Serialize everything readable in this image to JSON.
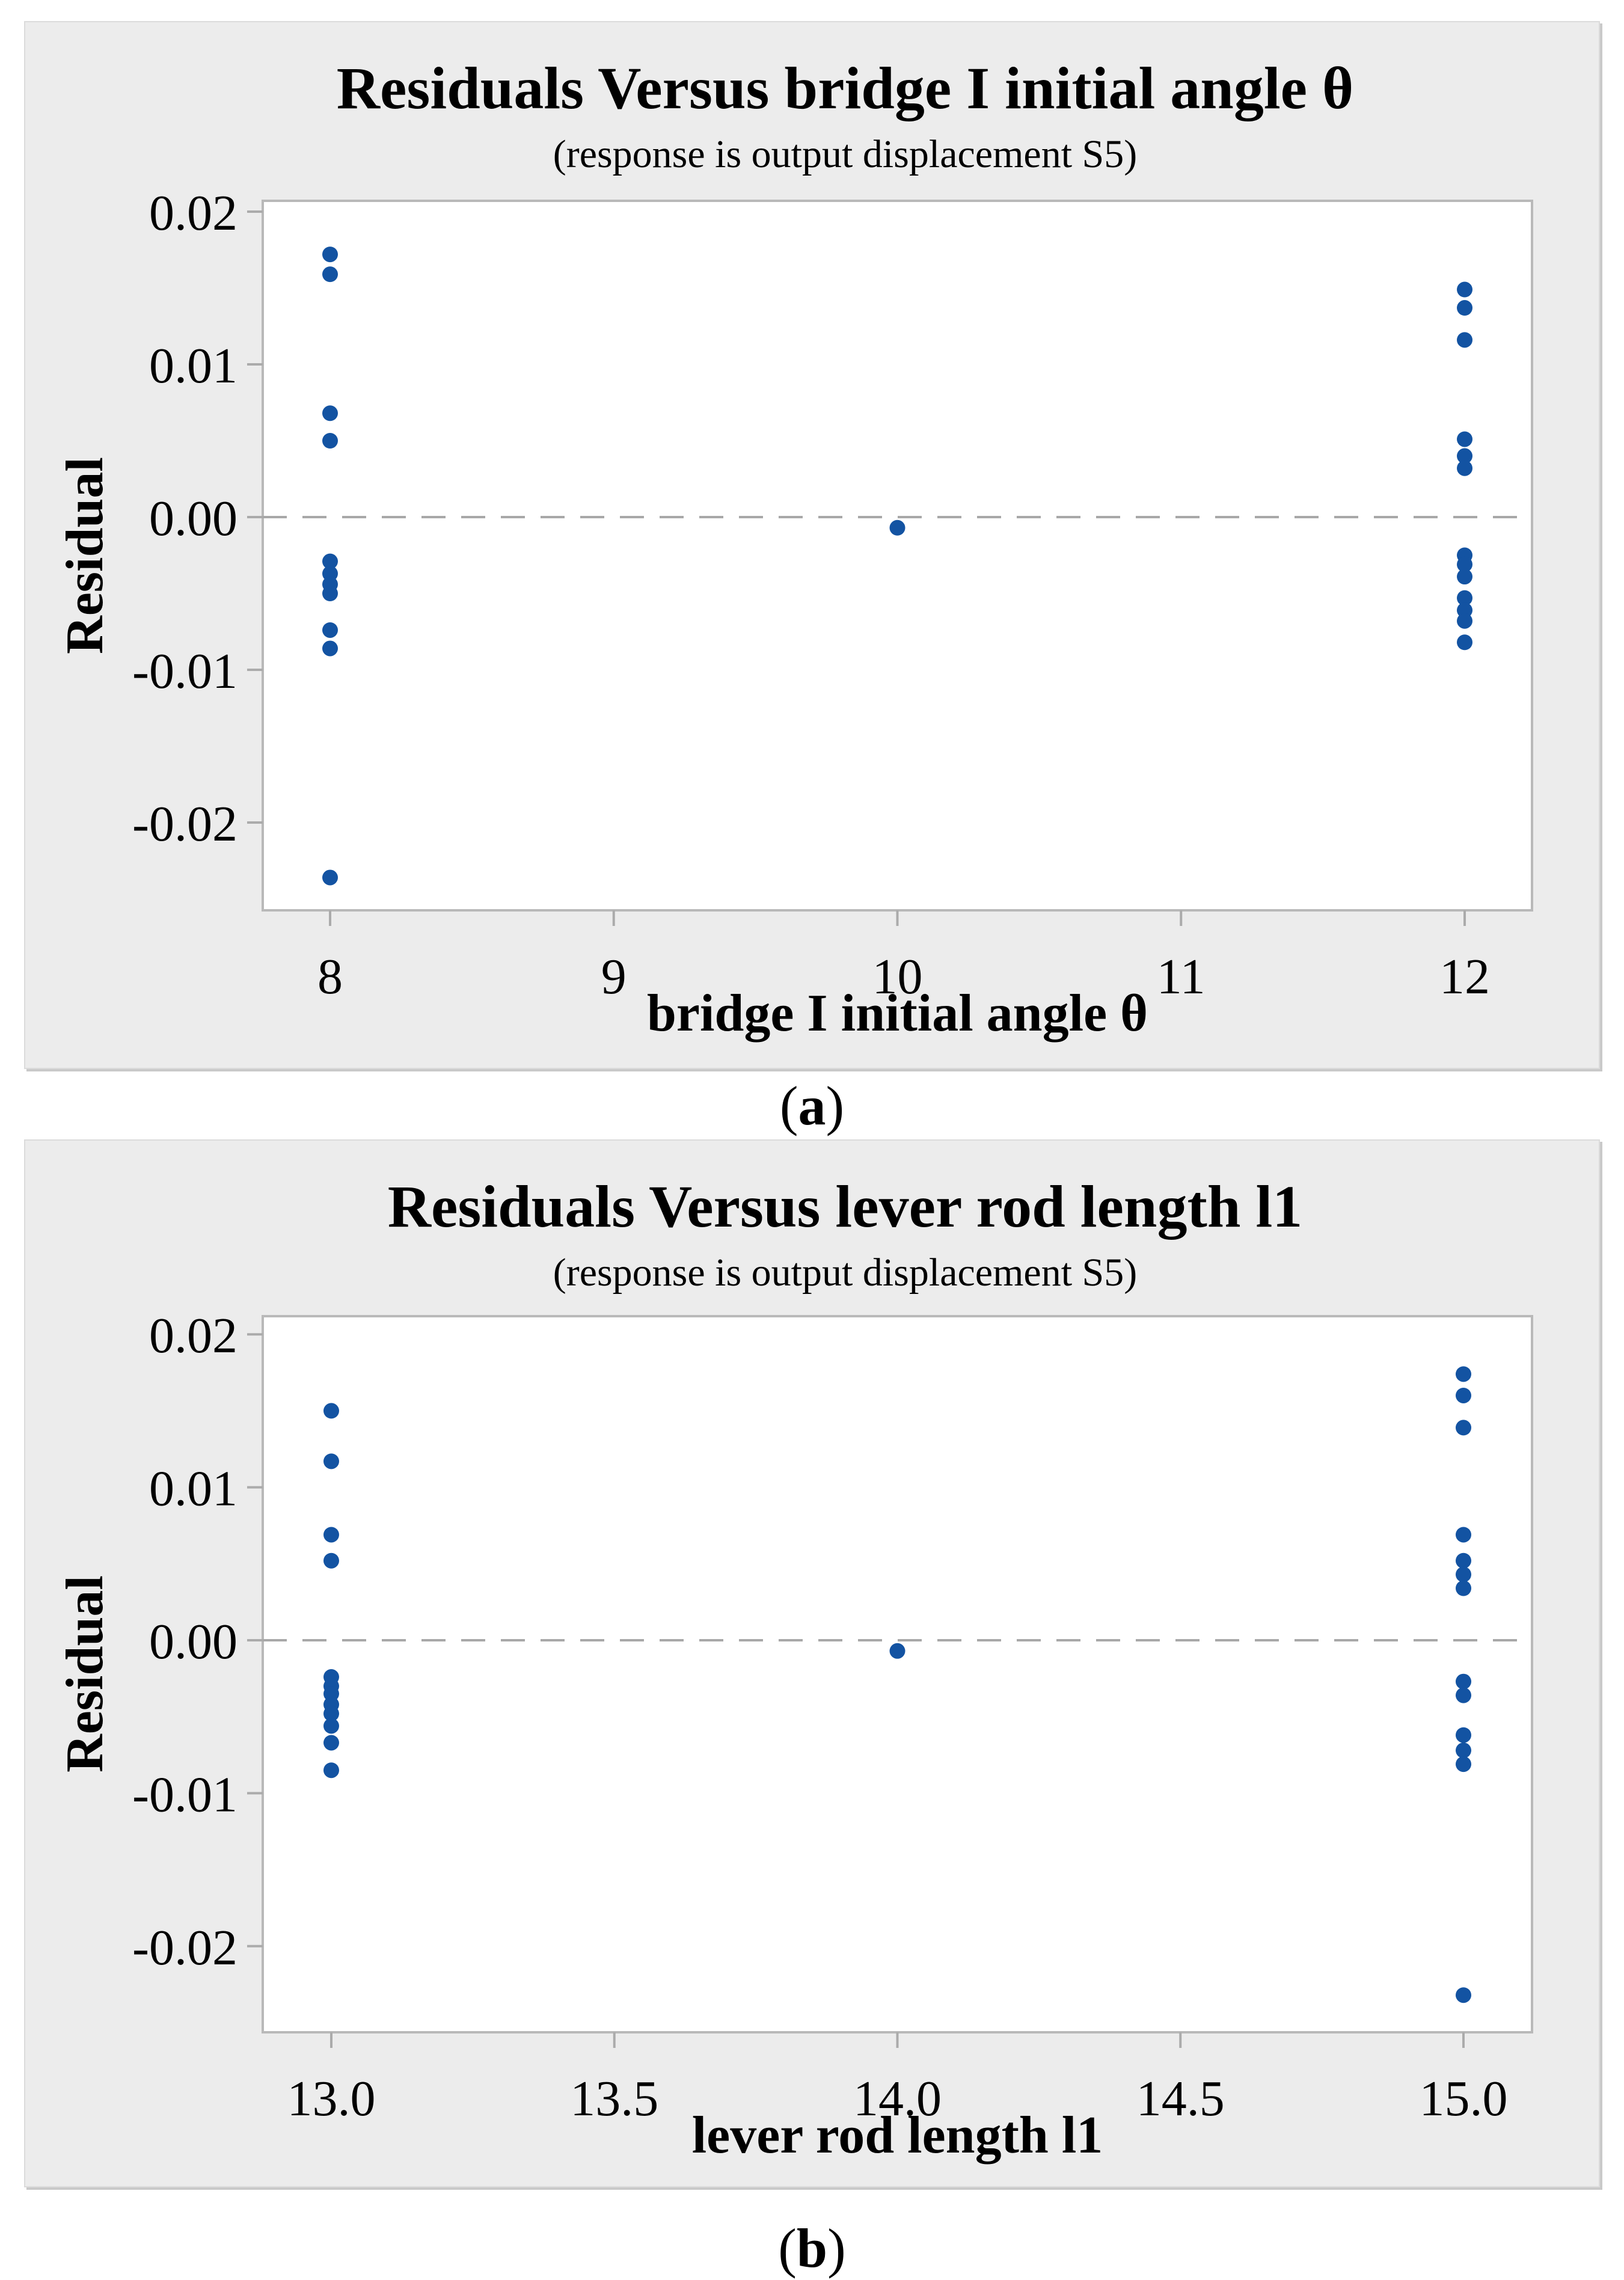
{
  "captions": [
    {
      "open": "(",
      "letter": "a",
      "close": ")"
    },
    {
      "open": "(",
      "letter": "b",
      "close": ")"
    }
  ],
  "colors": {
    "point": "#1353A2",
    "panel_background": "#ECECEC",
    "plot_background": "#FFFFFF",
    "plot_frame": "#B9B9B9",
    "tick": "#ABABAB",
    "zero_line": "#A8A8A8"
  },
  "chart_data": [
    {
      "type": "scatter",
      "title": "Residuals Versus bridge I initial angle θ",
      "subtitle": "(response is output displacement S5)",
      "xlabel": "bridge I initial angle θ",
      "ylabel": "Residual",
      "xlim": [
        7.76,
        12.24
      ],
      "ylim": [
        -0.0257,
        0.0207
      ],
      "grid": false,
      "zero_reference_line": 0.0,
      "x_ticks": [
        {
          "v": 8,
          "label": "8"
        },
        {
          "v": 9,
          "label": "9"
        },
        {
          "v": 10,
          "label": "10"
        },
        {
          "v": 11,
          "label": "11"
        },
        {
          "v": 12,
          "label": "12"
        }
      ],
      "y_ticks": [
        {
          "v": 0.02,
          "label": "0.02"
        },
        {
          "v": 0.01,
          "label": "0.01"
        },
        {
          "v": 0.0,
          "label": "0.00"
        },
        {
          "v": -0.01,
          "label": "-0.01"
        },
        {
          "v": -0.02,
          "label": "-0.02"
        }
      ],
      "series": [
        {
          "name": "residuals",
          "points": [
            [
              8,
              0.0172
            ],
            [
              8,
              0.0159
            ],
            [
              8,
              0.0068
            ],
            [
              8,
              0.005
            ],
            [
              8,
              -0.0029
            ],
            [
              8,
              -0.0037
            ],
            [
              8,
              -0.0044
            ],
            [
              8,
              -0.005
            ],
            [
              8,
              -0.0074
            ],
            [
              8,
              -0.0086
            ],
            [
              8,
              -0.0236
            ],
            [
              10,
              -0.0007
            ],
            [
              12,
              0.0149
            ],
            [
              12,
              0.0137
            ],
            [
              12,
              0.0116
            ],
            [
              12,
              0.0051
            ],
            [
              12,
              0.004
            ],
            [
              12,
              0.0032
            ],
            [
              12,
              -0.0025
            ],
            [
              12,
              -0.0031
            ],
            [
              12,
              -0.0039
            ],
            [
              12,
              -0.0053
            ],
            [
              12,
              -0.0061
            ],
            [
              12,
              -0.0068
            ],
            [
              12,
              -0.0082
            ]
          ]
        }
      ]
    },
    {
      "type": "scatter",
      "title": "Residuals Versus lever rod length l1",
      "subtitle": "(response is output displacement S5)",
      "xlabel": "lever rod length l1",
      "ylabel": "Residual",
      "xlim": [
        12.88,
        15.12
      ],
      "ylim": [
        -0.0256,
        0.0212
      ],
      "grid": false,
      "zero_reference_line": 0.0,
      "x_ticks": [
        {
          "v": 13.0,
          "label": "13.0"
        },
        {
          "v": 13.5,
          "label": "13.5"
        },
        {
          "v": 14.0,
          "label": "14.0"
        },
        {
          "v": 14.5,
          "label": "14.5"
        },
        {
          "v": 15.0,
          "label": "15.0"
        }
      ],
      "y_ticks": [
        {
          "v": 0.02,
          "label": "0.02"
        },
        {
          "v": 0.01,
          "label": "0.01"
        },
        {
          "v": 0.0,
          "label": "0.00"
        },
        {
          "v": -0.01,
          "label": "-0.01"
        },
        {
          "v": -0.02,
          "label": "-0.02"
        }
      ],
      "series": [
        {
          "name": "residuals",
          "points": [
            [
              13,
              0.015
            ],
            [
              13,
              0.0117
            ],
            [
              13,
              0.0069
            ],
            [
              13,
              0.0052
            ],
            [
              13,
              -0.0024
            ],
            [
              13,
              -0.003
            ],
            [
              13,
              -0.0035
            ],
            [
              13,
              -0.0042
            ],
            [
              13,
              -0.0048
            ],
            [
              13,
              -0.0056
            ],
            [
              13,
              -0.0067
            ],
            [
              13,
              -0.0085
            ],
            [
              14,
              -0.0007
            ],
            [
              15,
              0.0174
            ],
            [
              15,
              0.016
            ],
            [
              15,
              0.0139
            ],
            [
              15,
              0.0069
            ],
            [
              15,
              0.0052
            ],
            [
              15,
              0.0043
            ],
            [
              15,
              0.0034
            ],
            [
              15,
              -0.0027
            ],
            [
              15,
              -0.0036
            ],
            [
              15,
              -0.0062
            ],
            [
              15,
              -0.0072
            ],
            [
              15,
              -0.0081
            ],
            [
              15,
              -0.0232
            ]
          ]
        }
      ]
    }
  ]
}
